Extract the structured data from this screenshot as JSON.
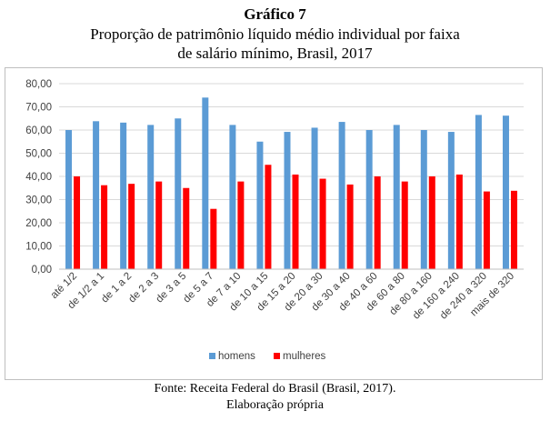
{
  "header": {
    "title": "Gráfico 7",
    "subtitle_line1": "Proporção de patrimônio líquido médio individual por faixa",
    "subtitle_line2": "de salário mínimo, Brasil, 2017"
  },
  "footer": {
    "source": "Fonte: Receita Federal do Brasil (Brasil, 2017).",
    "note": "Elaboração própria"
  },
  "chart_data": {
    "type": "bar",
    "categories": [
      "até 1/2",
      "de 1/2 a 1",
      "de 1 a 2",
      "de 2 a 3",
      "de 3 a 5",
      "de 5 a 7",
      "de 7 a 10",
      "de 10 a 15",
      "de 15 a 20",
      "de 20 a 30",
      "de 30 a 40",
      "de 40 a 60",
      "de 60 a 80",
      "de 80 a 160",
      "de 160 a 240",
      "de 240 a 320",
      "mais de 320"
    ],
    "series": [
      {
        "name": "homens",
        "color": "#5b9bd5",
        "values": [
          60,
          63.8,
          63.2,
          62.2,
          65,
          74,
          62.2,
          55,
          59.2,
          61,
          63.5,
          60,
          62.2,
          60,
          59.2,
          66.5,
          66.2
        ]
      },
      {
        "name": "mulheres",
        "color": "#ff0000",
        "values": [
          40,
          36.2,
          36.8,
          37.8,
          35,
          26,
          37.8,
          45,
          40.8,
          39,
          36.5,
          40,
          37.8,
          40,
          40.8,
          33.5,
          33.8
        ]
      }
    ],
    "yticks": [
      "0,00",
      "10,00",
      "20,00",
      "30,00",
      "40,00",
      "50,00",
      "60,00",
      "70,00",
      "80,00"
    ],
    "ylim": [
      0,
      80
    ],
    "grid": true,
    "legend_position": "bottom"
  }
}
